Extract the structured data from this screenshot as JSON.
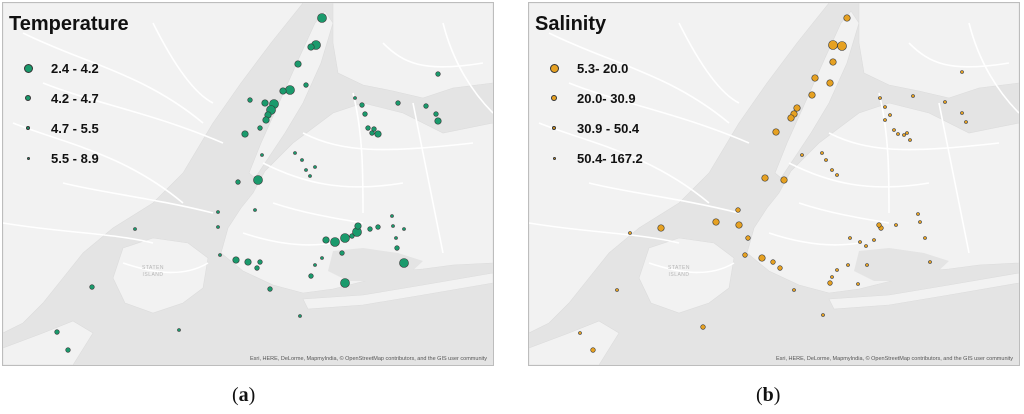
{
  "panels": [
    {
      "id": "a",
      "title": "Temperature",
      "color": "#1a9a6c",
      "legend": [
        {
          "label": "2.4 - 4.2",
          "class": 1
        },
        {
          "label": "4.2 - 4.7",
          "class": 2
        },
        {
          "label": "4.7 - 5.5",
          "class": 3
        },
        {
          "label": "5.5 - 8.9",
          "class": 4
        }
      ],
      "attribution": "Esri, HERE, DeLorme, MapmyIndia, © OpenStreetMap contributors, and the GIS user community",
      "caption_letter": "a",
      "points": [
        [
          322,
          18,
          1
        ],
        [
          316,
          45,
          1
        ],
        [
          311,
          47,
          2
        ],
        [
          298,
          64,
          2
        ],
        [
          306,
          85,
          3
        ],
        [
          290,
          90,
          1
        ],
        [
          283,
          91,
          2
        ],
        [
          274,
          104,
          1
        ],
        [
          271,
          110,
          1
        ],
        [
          268,
          115,
          2
        ],
        [
          266,
          120,
          2
        ],
        [
          260,
          128,
          3
        ],
        [
          245,
          134,
          2
        ],
        [
          250,
          100,
          3
        ],
        [
          265,
          103,
          2
        ],
        [
          262,
          155,
          4
        ],
        [
          258,
          180,
          1
        ],
        [
          238,
          182,
          3
        ],
        [
          355,
          98,
          4
        ],
        [
          362,
          105,
          3
        ],
        [
          368,
          128,
          3
        ],
        [
          372,
          133,
          3
        ],
        [
          378,
          134,
          2
        ],
        [
          374,
          129,
          3
        ],
        [
          365,
          114,
          3
        ],
        [
          398,
          103,
          3
        ],
        [
          426,
          106,
          3
        ],
        [
          436,
          114,
          3
        ],
        [
          438,
          121,
          2
        ],
        [
          438,
          74,
          3
        ],
        [
          295,
          153,
          4
        ],
        [
          302,
          160,
          4
        ],
        [
          306,
          170,
          4
        ],
        [
          315,
          167,
          4
        ],
        [
          310,
          176,
          4
        ],
        [
          255,
          210,
          4
        ],
        [
          218,
          212,
          4
        ],
        [
          218,
          227,
          4
        ],
        [
          135,
          229,
          4
        ],
        [
          326,
          240,
          2
        ],
        [
          335,
          242,
          1
        ],
        [
          345,
          238,
          1
        ],
        [
          352,
          236,
          3
        ],
        [
          357,
          232,
          1
        ],
        [
          358,
          226,
          2
        ],
        [
          370,
          229,
          3
        ],
        [
          378,
          227,
          3
        ],
        [
          392,
          216,
          4
        ],
        [
          393,
          226,
          4
        ],
        [
          404,
          229,
          4
        ],
        [
          396,
          238,
          4
        ],
        [
          397,
          248,
          3
        ],
        [
          404,
          263,
          1
        ],
        [
          342,
          253,
          3
        ],
        [
          236,
          260,
          2
        ],
        [
          248,
          262,
          2
        ],
        [
          257,
          268,
          3
        ],
        [
          260,
          262,
          3
        ],
        [
          315,
          265,
          4
        ],
        [
          322,
          258,
          4
        ],
        [
          311,
          276,
          3
        ],
        [
          345,
          283,
          1
        ],
        [
          270,
          289,
          3
        ],
        [
          92,
          287,
          3
        ],
        [
          300,
          316,
          4
        ],
        [
          179,
          330,
          4
        ],
        [
          57,
          332,
          3
        ],
        [
          68,
          350,
          3
        ],
        [
          220,
          255,
          4
        ]
      ]
    },
    {
      "id": "b",
      "title": "Salinity",
      "color": "#e6a122",
      "legend": [
        {
          "label": "5.3- 20.0",
          "class": 1
        },
        {
          "label": "20.0- 30.9",
          "class": 2
        },
        {
          "label": "30.9 - 50.4",
          "class": 3
        },
        {
          "label": "50.4- 167.2",
          "class": 4
        }
      ],
      "attribution": "Esri, HERE, DeLorme, MapmyIndia, © OpenStreetMap contributors, and the GIS user community",
      "caption_letter": "b",
      "points": [
        [
          847,
          18,
          2
        ],
        [
          833,
          45,
          1
        ],
        [
          842,
          46,
          1
        ],
        [
          833,
          62,
          2
        ],
        [
          830,
          83,
          2
        ],
        [
          815,
          78,
          2
        ],
        [
          812,
          95,
          2
        ],
        [
          797,
          108,
          2
        ],
        [
          794,
          114,
          2
        ],
        [
          791,
          118,
          2
        ],
        [
          776,
          132,
          2
        ],
        [
          802,
          155,
          4
        ],
        [
          784,
          180,
          2
        ],
        [
          765,
          178,
          2
        ],
        [
          880,
          98,
          4
        ],
        [
          885,
          107,
          4
        ],
        [
          890,
          115,
          4
        ],
        [
          885,
          120,
          4
        ],
        [
          894,
          130,
          4
        ],
        [
          898,
          134,
          4
        ],
        [
          904,
          135,
          4
        ],
        [
          907,
          133,
          4
        ],
        [
          910,
          140,
          4
        ],
        [
          913,
          96,
          4
        ],
        [
          945,
          102,
          4
        ],
        [
          962,
          113,
          4
        ],
        [
          966,
          122,
          4
        ],
        [
          962,
          72,
          4
        ],
        [
          822,
          153,
          4
        ],
        [
          826,
          160,
          4
        ],
        [
          832,
          170,
          4
        ],
        [
          837,
          175,
          4
        ],
        [
          738,
          210,
          3
        ],
        [
          716,
          222,
          2
        ],
        [
          661,
          228,
          2
        ],
        [
          739,
          225,
          2
        ],
        [
          748,
          238,
          3
        ],
        [
          630,
          233,
          4
        ],
        [
          850,
          238,
          4
        ],
        [
          860,
          242,
          4
        ],
        [
          866,
          246,
          4
        ],
        [
          874,
          240,
          4
        ],
        [
          881,
          228,
          3
        ],
        [
          879,
          225,
          3
        ],
        [
          896,
          225,
          4
        ],
        [
          918,
          214,
          4
        ],
        [
          920,
          222,
          4
        ],
        [
          925,
          238,
          4
        ],
        [
          930,
          262,
          4
        ],
        [
          867,
          265,
          4
        ],
        [
          745,
          255,
          3
        ],
        [
          762,
          258,
          2
        ],
        [
          773,
          262,
          3
        ],
        [
          780,
          268,
          3
        ],
        [
          830,
          283,
          3
        ],
        [
          832,
          277,
          4
        ],
        [
          837,
          270,
          4
        ],
        [
          858,
          284,
          4
        ],
        [
          823,
          315,
          4
        ],
        [
          794,
          290,
          4
        ],
        [
          703,
          327,
          3
        ],
        [
          617,
          290,
          4
        ],
        [
          580,
          333,
          4
        ],
        [
          593,
          350,
          3
        ],
        [
          848,
          265,
          4
        ]
      ]
    }
  ],
  "map_labels": {
    "staten_island_line1": "STATEN",
    "staten_island_line2": "ISLAND"
  }
}
